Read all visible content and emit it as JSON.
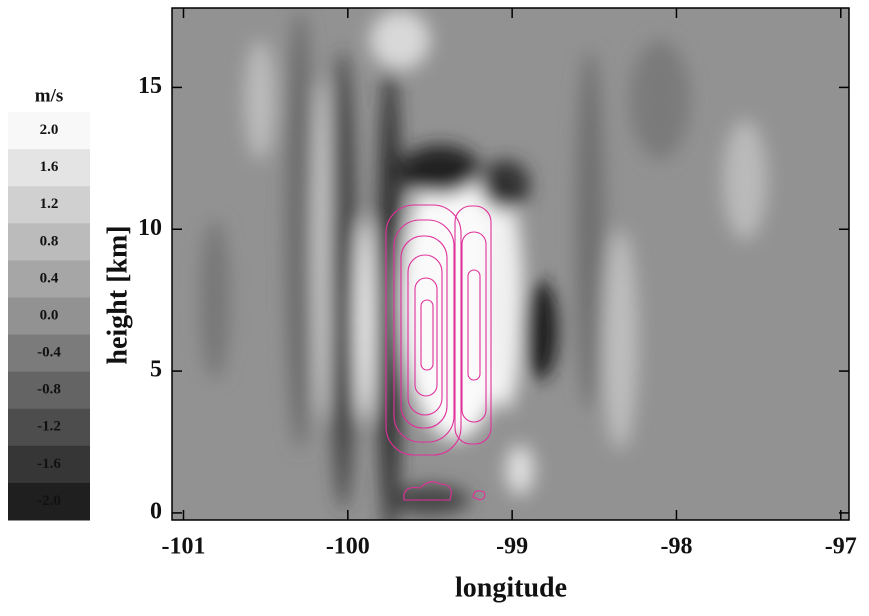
{
  "chart_data": {
    "type": "contour",
    "xlabel": "longitude",
    "ylabel": "height [km]",
    "xlim": [
      -101.07,
      -96.95
    ],
    "ylim": [
      -0.25,
      17.8
    ],
    "xticks": [
      -101,
      -100,
      -99,
      -98,
      -97
    ],
    "yticks": [
      0,
      5,
      10,
      15
    ],
    "colorbar": {
      "title": "m/s",
      "levels": [
        {
          "value": 2,
          "label": "2.0"
        },
        {
          "value": 1.6,
          "label": "1.6"
        },
        {
          "value": 1.2,
          "label": "1.2"
        },
        {
          "value": 0.8,
          "label": "0.8"
        },
        {
          "value": 0.4,
          "label": "0.4"
        },
        {
          "value": 0,
          "label": "0.0"
        },
        {
          "value": -0.4,
          "label": "-0.4"
        },
        {
          "value": -0.8,
          "label": "-0.8"
        },
        {
          "value": -1.2,
          "label": "-1.2"
        },
        {
          "value": -1.6,
          "label": "-1.6"
        },
        {
          "value": -2,
          "label": "-2.0"
        }
      ],
      "colors": [
        "#f8f8f8",
        "#e4e4e4",
        "#d0d0d0",
        "#bbbbbb",
        "#a6a6a6",
        "#929292",
        "#7b7b7b",
        "#646464",
        "#4d4d4d",
        "#363636",
        "#1f1f1f"
      ]
    },
    "contour_color": "#e0309a"
  }
}
